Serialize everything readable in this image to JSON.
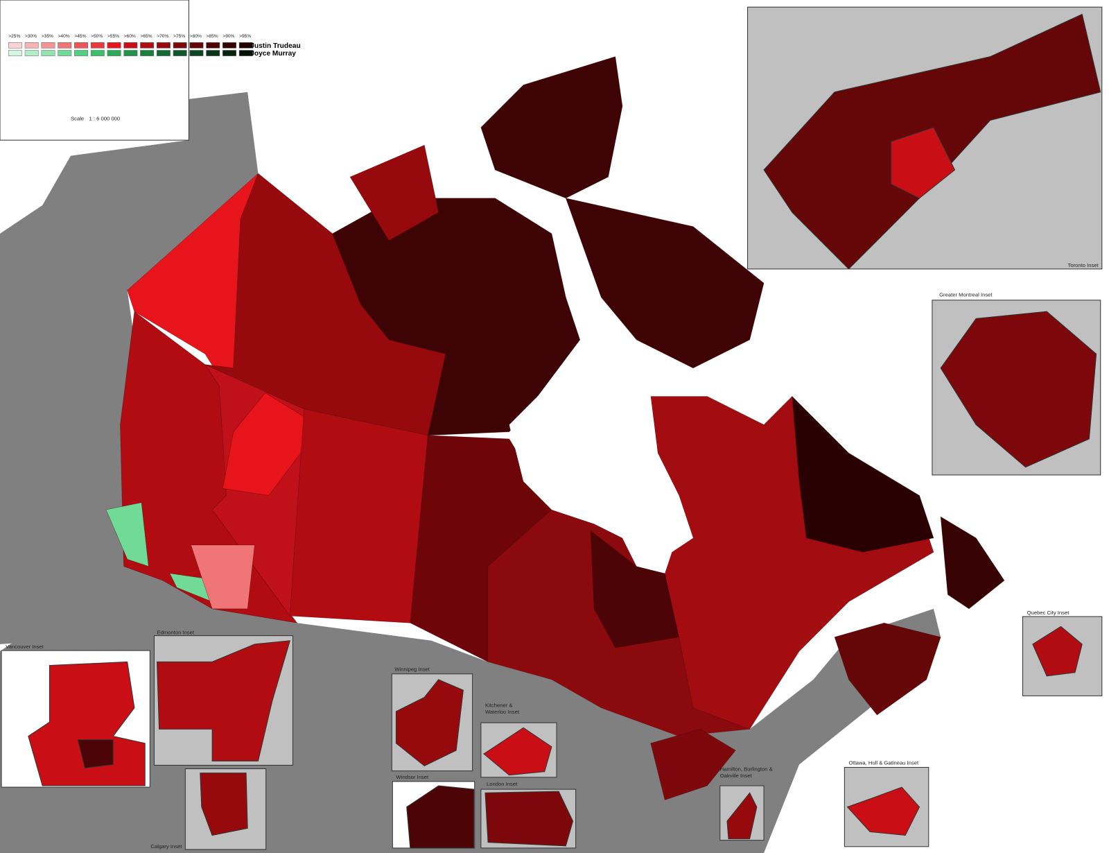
{
  "legend": {
    "thresholds": [
      ">25%",
      ">30%",
      ">35%",
      ">40%",
      ">45%",
      ">50%",
      ">55%",
      ">60%",
      ">65%",
      ">70%",
      ">75%",
      ">80%",
      ">85%",
      ">90%",
      ">95%"
    ],
    "candidates": [
      {
        "name": "Justin Trudeau",
        "colors": [
          "#fbd5d6",
          "#f7b4b5",
          "#f49495",
          "#f07576",
          "#ed5657",
          "#e9383a",
          "#e8141b",
          "#c90f15",
          "#b00c12",
          "#960a0e",
          "#7d080b",
          "#650609",
          "#4d0406",
          "#360203",
          "#1f0001"
        ]
      },
      {
        "name": "Joyce Murray",
        "colors": [
          "#d5f5e3",
          "#b3ecc9",
          "#92e3b0",
          "#71da97",
          "#53d07f",
          "#3cbf6a",
          "#2aa957",
          "#1f9449",
          "#187f3d",
          "#136b33",
          "#0f5829",
          "#0b4620",
          "#083417",
          "#05230f",
          "#021208"
        ]
      }
    ]
  },
  "scale": {
    "label": "Scale",
    "value": "1 : 6 000 000"
  },
  "insets": [
    {
      "label": [
        "Toronto Inset"
      ]
    },
    {
      "label": [
        "Greater Montreal Inset"
      ]
    },
    {
      "label": [
        "Quebec City Inset"
      ]
    },
    {
      "label": [
        "Vancouver Inset"
      ]
    },
    {
      "label": [
        "Edmonton Inset"
      ]
    },
    {
      "label": [
        "Calgary Inset"
      ]
    },
    {
      "label": [
        "Winnipeg Inset"
      ]
    },
    {
      "label": [
        "Kitchener &",
        "Waterloo Inset"
      ]
    },
    {
      "label": [
        "Windsor Inset"
      ]
    },
    {
      "label": [
        "London Inset"
      ]
    },
    {
      "label": [
        "Hamilton, Burlington &",
        "Oakville Inset"
      ]
    },
    {
      "label": [
        "Ottawa, Hull & Gatineau Inset"
      ]
    }
  ]
}
